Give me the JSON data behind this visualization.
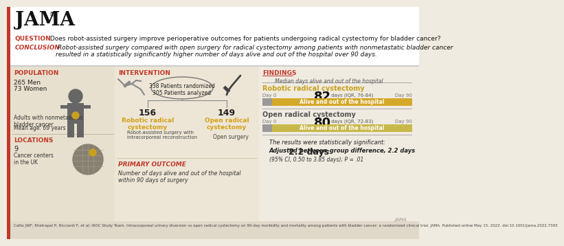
{
  "bg_color": "#f0ebe0",
  "white": "#ffffff",
  "red": "#c0392b",
  "gold": "#d4a017",
  "dark_gray": "#555555",
  "light_gray": "#aaaaaa",
  "body_gray": "#666666",
  "panel_left_bg": "#e8e0ce",
  "panel_mid_bg": "#ede6d6",
  "panel_right_bg": "#f0ebe0",
  "header_bg": "#ffffff",
  "citation_bg": "#e0d8c8",
  "jama_title": "JAMA",
  "trademark": "®",
  "question_label": "QUESTION",
  "question_text": " Does robot-assisted surgery improve perioperative outcomes for patients undergoing radical cystectomy for bladder cancer?",
  "conclusion_label": "CONCLUSION",
  "conclusion_text": " Robot-assisted surgery compared with open surgery for radical cystectomy among patients with nonmetastatic bladder cancer\nresulted in a statistically significantly higher number of days alive and out of the hospital over 90 days.",
  "pop_label": "POPULATION",
  "pop_men": "265 Men",
  "pop_women": "73 Women",
  "pop_desc": "Adults with nonmetastatic\nbladder cancer",
  "pop_age": "Mean age: 69 years",
  "loc_label": "LOCATIONS",
  "loc_n": "9",
  "loc_desc": "Cancer centers\nin the UK",
  "int_label": "INTERVENTION",
  "rand_n": "338 Patients randomized",
  "anal_n": "305 Patients analyzed",
  "rob_n": "156",
  "rob_label": "Robotic radical\ncystectomy",
  "rob_desc": "Robot-assisted surgery with\nintracorporeal reconstruction",
  "open_n": "149",
  "open_label": "Open radical\ncystectomy",
  "open_desc": "Open surgery",
  "prim_label": "PRIMARY OUTCOME",
  "prim_text": "Number of days alive and out of the hospital\nwithin 90 days of surgery",
  "find_label": "FINDINGS",
  "find_sub": "Median days alive and out of the hospital",
  "rob_res_label": "Robotic radical cystectomy",
  "rob_days": "82",
  "rob_iqr": " days (IQR, 76-84)",
  "bar_label": "Alive and out of the hospital",
  "rob_bar_color": "#d4a829",
  "open_res_label": "Open radical cystectomy",
  "open_days": "80",
  "open_iqr": " days (IQR, 72-83)",
  "open_bar_color": "#c8b84a",
  "day0": "Day 0",
  "day90": "Day 90",
  "sig_line1": "The results were statistically significant:",
  "sig_line2": "Adjusted between-group difference, 2.2 days",
  "sig_line3": "(95% CI, 0.50 to 3.85 days); P = .01",
  "jama_small": "JAMA",
  "citation": "Catto JWF, Khetrapal P, Ricciardi F, et al; iROC Study Team. Intracorporeal urinary diversion vs open radical cystectomy on 90-day morbidity and mortality among patients with bladder cancer: a randomized clinical trial. JAMA. Published online May 15, 2022. doi:10.1001/jama.2022.7393"
}
